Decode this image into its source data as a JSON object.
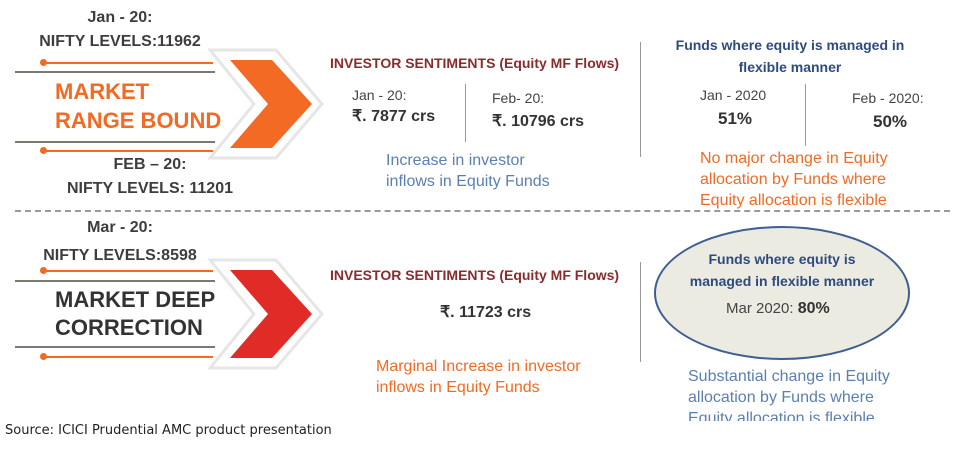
{
  "top": {
    "date1": "Jan - 20:",
    "nifty1": "NIFTY LEVELS:11962",
    "market_line1": "MARKET",
    "market_line2": "RANGE BOUND",
    "date2": "FEB – 20:",
    "nifty2": "NIFTY LEVELS: 11201",
    "sentiment_title": "INVESTOR SENTIMENTS (Equity MF Flows)",
    "flow1_label": "Jan - 20:",
    "flow1_value": "₹. 7877 crs",
    "flow2_label": "Feb- 20:",
    "flow2_value": "₹. 10796 crs",
    "flow_note": [
      "Increase in investor",
      "inflows in Equity Funds"
    ],
    "funds_title": [
      "Funds where equity is managed in",
      "flexible manner"
    ],
    "alloc1_label": "Jan - 2020",
    "alloc1_value": "51%",
    "alloc2_label": "Feb - 2020:",
    "alloc2_value": "50%",
    "alloc_note": [
      "No major change in Equity",
      "allocation by Funds where",
      "Equity allocation is flexible"
    ]
  },
  "bottom": {
    "date1": "Mar - 20:",
    "nifty1": "NIFTY LEVELS:8598",
    "market_line1": "MARKET DEEP",
    "market_line2": "CORRECTION",
    "sentiment_title": "INVESTOR SENTIMENTS (Equity MF Flows)",
    "flow_value": "₹. 11723 crs",
    "flow_note": [
      "Marginal Increase in investor",
      "inflows in Equity Funds"
    ],
    "funds_title": [
      "Funds where equity is",
      "managed in flexible manner"
    ],
    "alloc_label": "Mar 2020: ",
    "alloc_value": "80%",
    "alloc_note": [
      "Substantial change in Equity",
      "allocation by Funds where",
      "Equity allocation is flexible"
    ]
  },
  "source": "Source: ICICI Prudential AMC product presentation",
  "colors": {
    "orange": "#f26a24",
    "red": "#e02b26",
    "navy": "#2e4b7f"
  }
}
